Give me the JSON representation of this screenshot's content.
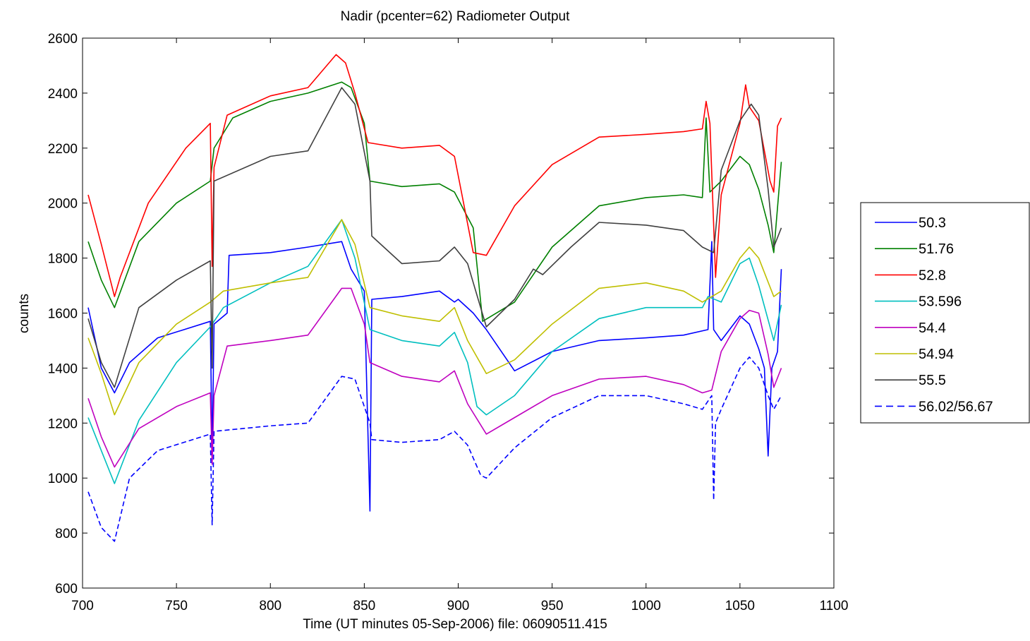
{
  "chart_data": {
    "type": "line",
    "title": "Nadir (pcenter=62) Radiometer Output",
    "xlabel": "Time (UT minutes 05-Sep-2006) file: 06090511.415",
    "ylabel": "counts",
    "xlim": [
      700,
      1100
    ],
    "ylim": [
      600,
      2600
    ],
    "x_ticks": [
      700,
      750,
      800,
      850,
      900,
      950,
      1000,
      1050,
      1100
    ],
    "y_ticks": [
      600,
      800,
      1000,
      1200,
      1400,
      1600,
      1800,
      2000,
      2200,
      2400,
      2600
    ],
    "grid": false,
    "legend_position": "outside-right",
    "series": [
      {
        "name": "50.3",
        "color": "#0000ff",
        "dash": "solid",
        "points": [
          [
            703,
            1620
          ],
          [
            710,
            1400
          ],
          [
            717,
            1310
          ],
          [
            725,
            1420
          ],
          [
            740,
            1510
          ],
          [
            768,
            1570
          ],
          [
            769,
            1080
          ],
          [
            770,
            1560
          ],
          [
            777,
            1600
          ],
          [
            778,
            1810
          ],
          [
            800,
            1820
          ],
          [
            820,
            1840
          ],
          [
            838,
            1860
          ],
          [
            843,
            1760
          ],
          [
            850,
            1680
          ],
          [
            853,
            880
          ],
          [
            854,
            1650
          ],
          [
            870,
            1660
          ],
          [
            890,
            1680
          ],
          [
            898,
            1640
          ],
          [
            900,
            1650
          ],
          [
            908,
            1600
          ],
          [
            915,
            1540
          ],
          [
            930,
            1390
          ],
          [
            950,
            1460
          ],
          [
            975,
            1500
          ],
          [
            1000,
            1510
          ],
          [
            1020,
            1520
          ],
          [
            1033,
            1540
          ],
          [
            1035,
            1860
          ],
          [
            1036,
            1540
          ],
          [
            1040,
            1500
          ],
          [
            1050,
            1590
          ],
          [
            1055,
            1560
          ],
          [
            1060,
            1470
          ],
          [
            1063,
            1400
          ],
          [
            1065,
            1080
          ],
          [
            1067,
            1400
          ],
          [
            1070,
            1460
          ],
          [
            1072,
            1760
          ]
        ]
      },
      {
        "name": "51.76",
        "color": "#008000",
        "dash": "solid",
        "points": [
          [
            703,
            1860
          ],
          [
            710,
            1720
          ],
          [
            717,
            1620
          ],
          [
            730,
            1860
          ],
          [
            750,
            2000
          ],
          [
            768,
            2080
          ],
          [
            770,
            2200
          ],
          [
            780,
            2310
          ],
          [
            800,
            2370
          ],
          [
            820,
            2400
          ],
          [
            838,
            2440
          ],
          [
            843,
            2420
          ],
          [
            850,
            2290
          ],
          [
            853,
            2080
          ],
          [
            870,
            2060
          ],
          [
            890,
            2070
          ],
          [
            898,
            2040
          ],
          [
            908,
            1910
          ],
          [
            913,
            1570
          ],
          [
            930,
            1640
          ],
          [
            950,
            1840
          ],
          [
            975,
            1990
          ],
          [
            1000,
            2020
          ],
          [
            1020,
            2030
          ],
          [
            1030,
            2020
          ],
          [
            1032,
            2310
          ],
          [
            1034,
            2040
          ],
          [
            1040,
            2080
          ],
          [
            1050,
            2170
          ],
          [
            1055,
            2140
          ],
          [
            1060,
            2050
          ],
          [
            1065,
            1920
          ],
          [
            1068,
            1820
          ],
          [
            1072,
            2150
          ]
        ]
      },
      {
        "name": "52.8",
        "color": "#ff0000",
        "dash": "solid",
        "points": [
          [
            703,
            2030
          ],
          [
            710,
            1850
          ],
          [
            717,
            1660
          ],
          [
            720,
            1730
          ],
          [
            735,
            2000
          ],
          [
            755,
            2200
          ],
          [
            768,
            2290
          ],
          [
            769,
            1770
          ],
          [
            770,
            2130
          ],
          [
            777,
            2320
          ],
          [
            800,
            2390
          ],
          [
            820,
            2420
          ],
          [
            835,
            2540
          ],
          [
            840,
            2510
          ],
          [
            845,
            2400
          ],
          [
            852,
            2220
          ],
          [
            870,
            2200
          ],
          [
            890,
            2210
          ],
          [
            898,
            2170
          ],
          [
            908,
            1820
          ],
          [
            915,
            1810
          ],
          [
            930,
            1990
          ],
          [
            950,
            2140
          ],
          [
            975,
            2240
          ],
          [
            1000,
            2250
          ],
          [
            1020,
            2260
          ],
          [
            1030,
            2270
          ],
          [
            1032,
            2370
          ],
          [
            1034,
            2290
          ],
          [
            1037,
            1730
          ],
          [
            1040,
            2030
          ],
          [
            1050,
            2290
          ],
          [
            1053,
            2430
          ],
          [
            1055,
            2350
          ],
          [
            1060,
            2300
          ],
          [
            1066,
            2080
          ],
          [
            1068,
            2040
          ],
          [
            1070,
            2280
          ],
          [
            1072,
            2310
          ]
        ]
      },
      {
        "name": "53.596",
        "color": "#00bfbf",
        "dash": "solid",
        "points": [
          [
            703,
            1220
          ],
          [
            710,
            1100
          ],
          [
            717,
            980
          ],
          [
            730,
            1210
          ],
          [
            750,
            1420
          ],
          [
            768,
            1550
          ],
          [
            775,
            1620
          ],
          [
            800,
            1710
          ],
          [
            820,
            1770
          ],
          [
            838,
            1940
          ],
          [
            845,
            1800
          ],
          [
            853,
            1540
          ],
          [
            870,
            1500
          ],
          [
            890,
            1480
          ],
          [
            898,
            1530
          ],
          [
            905,
            1420
          ],
          [
            910,
            1260
          ],
          [
            915,
            1230
          ],
          [
            930,
            1300
          ],
          [
            950,
            1460
          ],
          [
            975,
            1580
          ],
          [
            1000,
            1620
          ],
          [
            1020,
            1620
          ],
          [
            1030,
            1620
          ],
          [
            1033,
            1660
          ],
          [
            1040,
            1640
          ],
          [
            1050,
            1780
          ],
          [
            1055,
            1800
          ],
          [
            1060,
            1700
          ],
          [
            1068,
            1500
          ],
          [
            1072,
            1630
          ]
        ]
      },
      {
        "name": "54.4",
        "color": "#bf00bf",
        "dash": "solid",
        "points": [
          [
            703,
            1290
          ],
          [
            710,
            1150
          ],
          [
            717,
            1040
          ],
          [
            730,
            1180
          ],
          [
            750,
            1260
          ],
          [
            768,
            1310
          ],
          [
            769,
            1050
          ],
          [
            770,
            1300
          ],
          [
            777,
            1480
          ],
          [
            800,
            1500
          ],
          [
            820,
            1520
          ],
          [
            838,
            1690
          ],
          [
            843,
            1690
          ],
          [
            850,
            1560
          ],
          [
            853,
            1420
          ],
          [
            870,
            1370
          ],
          [
            890,
            1350
          ],
          [
            898,
            1390
          ],
          [
            905,
            1270
          ],
          [
            915,
            1160
          ],
          [
            930,
            1220
          ],
          [
            950,
            1300
          ],
          [
            975,
            1360
          ],
          [
            1000,
            1370
          ],
          [
            1020,
            1340
          ],
          [
            1030,
            1310
          ],
          [
            1035,
            1320
          ],
          [
            1040,
            1460
          ],
          [
            1050,
            1580
          ],
          [
            1055,
            1610
          ],
          [
            1060,
            1600
          ],
          [
            1065,
            1450
          ],
          [
            1068,
            1330
          ],
          [
            1072,
            1400
          ]
        ]
      },
      {
        "name": "54.94",
        "color": "#bfbf00",
        "dash": "solid",
        "points": [
          [
            703,
            1510
          ],
          [
            710,
            1380
          ],
          [
            717,
            1230
          ],
          [
            730,
            1420
          ],
          [
            750,
            1560
          ],
          [
            768,
            1640
          ],
          [
            775,
            1680
          ],
          [
            800,
            1710
          ],
          [
            820,
            1730
          ],
          [
            838,
            1940
          ],
          [
            845,
            1850
          ],
          [
            853,
            1620
          ],
          [
            870,
            1590
          ],
          [
            890,
            1570
          ],
          [
            898,
            1620
          ],
          [
            905,
            1500
          ],
          [
            915,
            1380
          ],
          [
            930,
            1430
          ],
          [
            950,
            1560
          ],
          [
            975,
            1690
          ],
          [
            1000,
            1710
          ],
          [
            1020,
            1680
          ],
          [
            1030,
            1640
          ],
          [
            1040,
            1680
          ],
          [
            1050,
            1800
          ],
          [
            1055,
            1840
          ],
          [
            1060,
            1800
          ],
          [
            1068,
            1660
          ],
          [
            1072,
            1680
          ]
        ]
      },
      {
        "name": "55.5",
        "color": "#404040",
        "dash": "solid",
        "points": [
          [
            703,
            1580
          ],
          [
            710,
            1420
          ],
          [
            717,
            1330
          ],
          [
            730,
            1620
          ],
          [
            750,
            1720
          ],
          [
            768,
            1790
          ],
          [
            769,
            1400
          ],
          [
            770,
            2080
          ],
          [
            800,
            2170
          ],
          [
            820,
            2190
          ],
          [
            838,
            2420
          ],
          [
            845,
            2360
          ],
          [
            853,
            2080
          ],
          [
            854,
            1880
          ],
          [
            870,
            1780
          ],
          [
            890,
            1790
          ],
          [
            898,
            1840
          ],
          [
            905,
            1780
          ],
          [
            915,
            1550
          ],
          [
            930,
            1650
          ],
          [
            940,
            1760
          ],
          [
            945,
            1740
          ],
          [
            960,
            1840
          ],
          [
            975,
            1930
          ],
          [
            1000,
            1920
          ],
          [
            1020,
            1900
          ],
          [
            1030,
            1840
          ],
          [
            1033,
            1830
          ],
          [
            1036,
            1820
          ],
          [
            1040,
            2120
          ],
          [
            1050,
            2300
          ],
          [
            1056,
            2360
          ],
          [
            1060,
            2320
          ],
          [
            1065,
            2050
          ],
          [
            1068,
            1840
          ],
          [
            1072,
            1910
          ]
        ]
      },
      {
        "name": "56.02/56.67",
        "color": "#0000ff",
        "dash": "dashed",
        "points": [
          [
            703,
            950
          ],
          [
            710,
            820
          ],
          [
            717,
            770
          ],
          [
            725,
            1000
          ],
          [
            740,
            1100
          ],
          [
            768,
            1160
          ],
          [
            769,
            830
          ],
          [
            770,
            1170
          ],
          [
            800,
            1190
          ],
          [
            820,
            1200
          ],
          [
            838,
            1370
          ],
          [
            845,
            1360
          ],
          [
            853,
            1200
          ],
          [
            854,
            1140
          ],
          [
            870,
            1130
          ],
          [
            890,
            1140
          ],
          [
            898,
            1170
          ],
          [
            905,
            1120
          ],
          [
            912,
            1010
          ],
          [
            915,
            1000
          ],
          [
            930,
            1110
          ],
          [
            950,
            1220
          ],
          [
            975,
            1300
          ],
          [
            1000,
            1300
          ],
          [
            1020,
            1270
          ],
          [
            1030,
            1250
          ],
          [
            1035,
            1300
          ],
          [
            1036,
            920
          ],
          [
            1037,
            1200
          ],
          [
            1040,
            1250
          ],
          [
            1050,
            1400
          ],
          [
            1055,
            1440
          ],
          [
            1060,
            1400
          ],
          [
            1065,
            1300
          ],
          [
            1068,
            1250
          ],
          [
            1072,
            1300
          ]
        ]
      }
    ]
  }
}
